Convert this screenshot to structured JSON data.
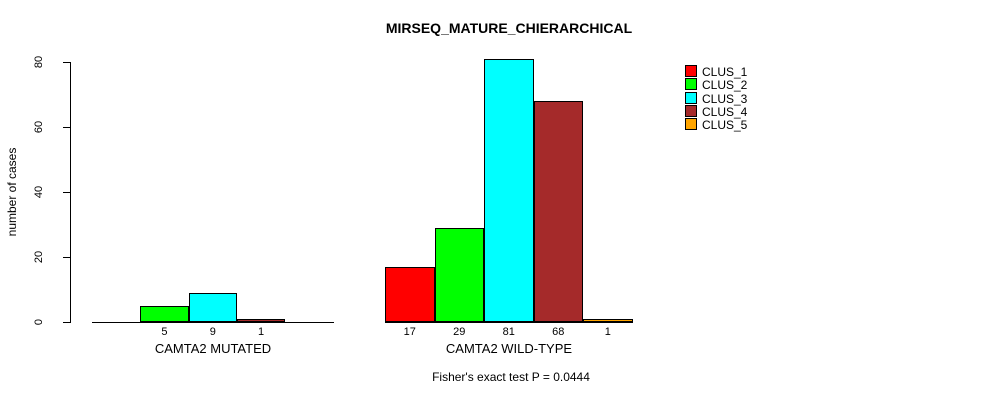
{
  "title": "MIRSEQ_MATURE_CHIERARCHICAL",
  "chart_data": {
    "type": "bar",
    "title": "MIRSEQ_MATURE_CHIERARCHICAL",
    "xlabel": "",
    "ylabel": "number of cases",
    "ylim": [
      0,
      80
    ],
    "yticks": [
      0,
      20,
      40,
      60,
      80
    ],
    "grid": false,
    "legend_position": "top-right",
    "groups": [
      "CAMTA2 MUTATED",
      "CAMTA2 WILD-TYPE"
    ],
    "series": [
      {
        "name": "CLUS_1",
        "color": "#FF0000",
        "values": [
          0,
          17
        ]
      },
      {
        "name": "CLUS_2",
        "color": "#00FF00",
        "values": [
          5,
          29
        ]
      },
      {
        "name": "CLUS_3",
        "color": "#00FFFF",
        "values": [
          9,
          81
        ]
      },
      {
        "name": "CLUS_4",
        "color": "#A52A2A",
        "values": [
          1,
          68
        ]
      },
      {
        "name": "CLUS_5",
        "color": "#FFA500",
        "values": [
          0,
          1
        ]
      }
    ],
    "bar_value_labels": {
      "CAMTA2 MUTATED": [
        null,
        5,
        9,
        1,
        null
      ],
      "CAMTA2 WILD-TYPE": [
        17,
        29,
        81,
        68,
        1
      ]
    },
    "annotation": "Fisher's exact test P = 0.0444"
  },
  "legend": {
    "entries": [
      {
        "label": "CLUS_1",
        "color": "#FF0000"
      },
      {
        "label": "CLUS_2",
        "color": "#00FF00"
      },
      {
        "label": "CLUS_3",
        "color": "#00FFFF"
      },
      {
        "label": "CLUS_4",
        "color": "#A52A2A"
      },
      {
        "label": "CLUS_5",
        "color": "#FFA500"
      }
    ]
  }
}
